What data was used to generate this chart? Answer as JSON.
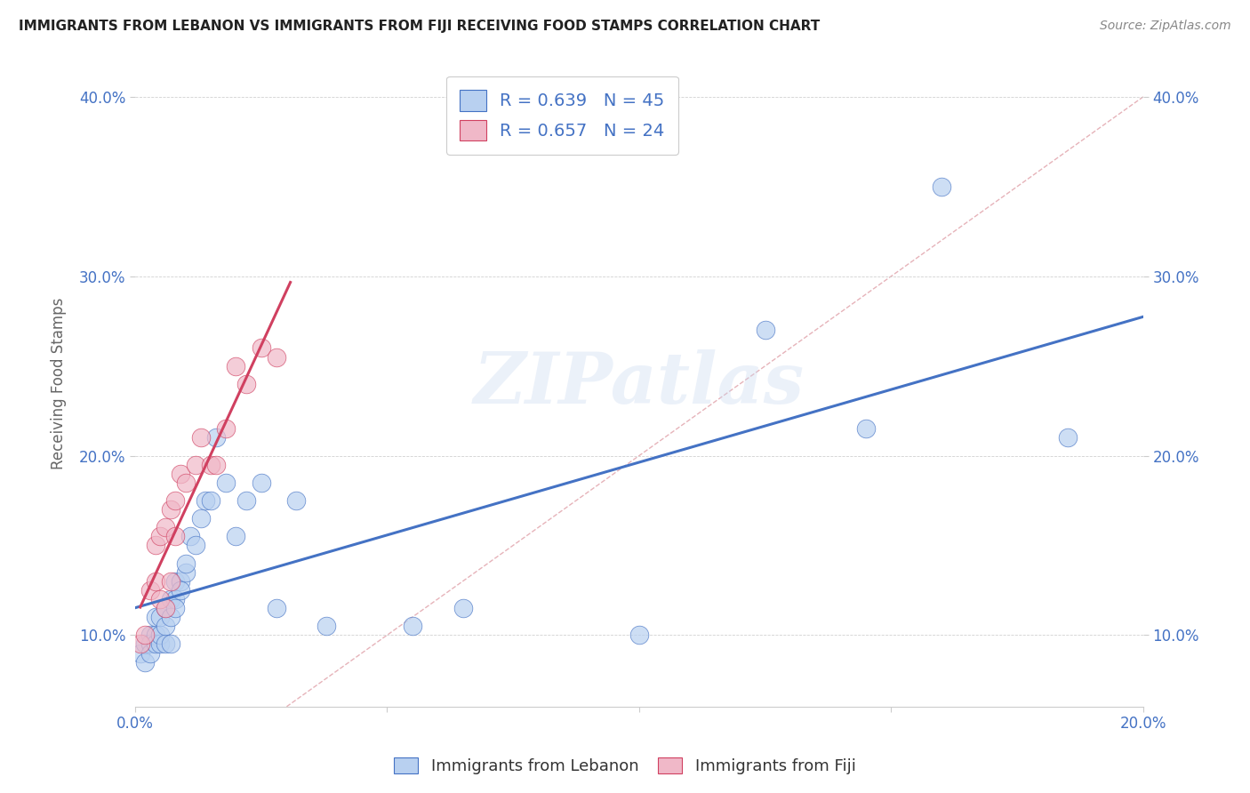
{
  "title": "IMMIGRANTS FROM LEBANON VS IMMIGRANTS FROM FIJI RECEIVING FOOD STAMPS CORRELATION CHART",
  "source": "Source: ZipAtlas.com",
  "ylabel": "Receiving Food Stamps",
  "xlim": [
    0.0,
    0.2
  ],
  "ylim": [
    0.06,
    0.42
  ],
  "xtick_labels": [
    "0.0%",
    "",
    "",
    "",
    "20.0%"
  ],
  "xtick_values": [
    0.0,
    0.05,
    0.1,
    0.15,
    0.2
  ],
  "ytick_labels": [
    "10.0%",
    "20.0%",
    "30.0%",
    "40.0%"
  ],
  "ytick_values": [
    0.1,
    0.2,
    0.3,
    0.4
  ],
  "legend1_label": "R = 0.639   N = 45",
  "legend2_label": "R = 0.657   N = 24",
  "color_blue": "#b8d0f0",
  "color_pink": "#f0b8c8",
  "line_blue": "#4472c4",
  "line_pink": "#d04060",
  "diagonal_color": "#e0a0a8",
  "background_color": "#ffffff",
  "watermark": "ZIPatlas",
  "lebanon_x": [
    0.001,
    0.002,
    0.002,
    0.003,
    0.003,
    0.003,
    0.004,
    0.004,
    0.004,
    0.005,
    0.005,
    0.005,
    0.006,
    0.006,
    0.006,
    0.007,
    0.007,
    0.007,
    0.008,
    0.008,
    0.008,
    0.009,
    0.009,
    0.01,
    0.01,
    0.011,
    0.012,
    0.013,
    0.014,
    0.015,
    0.016,
    0.018,
    0.02,
    0.022,
    0.025,
    0.028,
    0.032,
    0.038,
    0.055,
    0.065,
    0.1,
    0.125,
    0.145,
    0.16,
    0.185
  ],
  "lebanon_y": [
    0.09,
    0.085,
    0.095,
    0.1,
    0.095,
    0.09,
    0.1,
    0.095,
    0.11,
    0.095,
    0.1,
    0.11,
    0.095,
    0.105,
    0.115,
    0.12,
    0.11,
    0.095,
    0.12,
    0.115,
    0.13,
    0.13,
    0.125,
    0.135,
    0.14,
    0.155,
    0.15,
    0.165,
    0.175,
    0.175,
    0.21,
    0.185,
    0.155,
    0.175,
    0.185,
    0.115,
    0.175,
    0.105,
    0.105,
    0.115,
    0.1,
    0.27,
    0.215,
    0.35,
    0.21
  ],
  "fiji_x": [
    0.001,
    0.002,
    0.003,
    0.004,
    0.004,
    0.005,
    0.005,
    0.006,
    0.006,
    0.007,
    0.007,
    0.008,
    0.008,
    0.009,
    0.01,
    0.012,
    0.013,
    0.015,
    0.016,
    0.018,
    0.02,
    0.022,
    0.025,
    0.028
  ],
  "fiji_y": [
    0.095,
    0.1,
    0.125,
    0.13,
    0.15,
    0.12,
    0.155,
    0.115,
    0.16,
    0.13,
    0.17,
    0.155,
    0.175,
    0.19,
    0.185,
    0.195,
    0.21,
    0.195,
    0.195,
    0.215,
    0.25,
    0.24,
    0.26,
    0.255
  ]
}
